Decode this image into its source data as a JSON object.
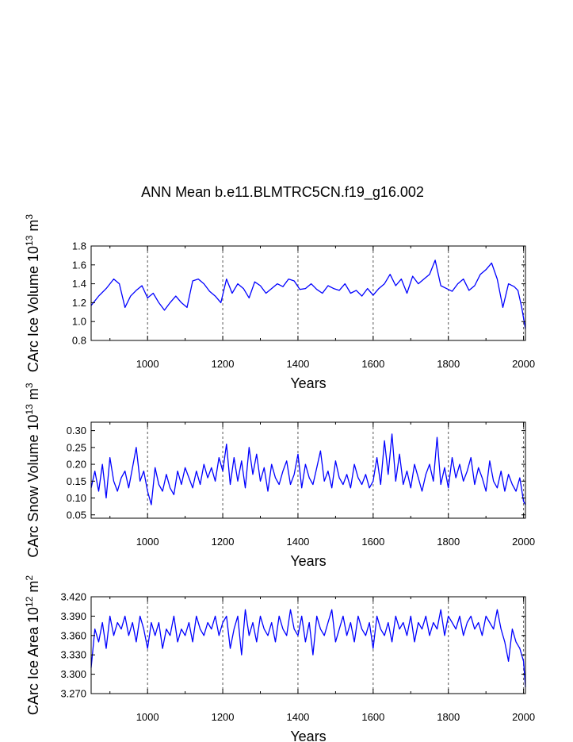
{
  "page": {
    "title": "ANN Mean b.e11.BLMTRC5CN.f19_g16.002"
  },
  "chart_data": [
    {
      "type": "line",
      "name": "ice-volume",
      "xlabel": "Years",
      "ylabel_main": "CArc Ice Volume 10",
      "ylabel_sup1": "13",
      "ylabel_mid": " m",
      "ylabel_sup2": "3",
      "xlim": [
        850,
        2005
      ],
      "ylim": [
        0.8,
        1.8
      ],
      "xticks": [
        1000,
        1200,
        1400,
        1600,
        1800,
        2000
      ],
      "yticks": [
        0.8,
        1.0,
        1.2,
        1.4,
        1.6,
        1.8
      ],
      "ytick_labels": [
        "0.8",
        "1.0",
        "1.2",
        "1.4",
        "1.6",
        "1.8"
      ],
      "grid": "vertical-dashed",
      "color": "#0000ff",
      "x": [
        850,
        870,
        890,
        910,
        925,
        940,
        955,
        970,
        985,
        1000,
        1015,
        1030,
        1045,
        1060,
        1075,
        1090,
        1105,
        1120,
        1135,
        1150,
        1165,
        1180,
        1195,
        1210,
        1225,
        1240,
        1255,
        1270,
        1285,
        1300,
        1315,
        1330,
        1345,
        1360,
        1375,
        1390,
        1405,
        1420,
        1435,
        1450,
        1465,
        1480,
        1495,
        1510,
        1525,
        1540,
        1555,
        1570,
        1585,
        1600,
        1615,
        1630,
        1645,
        1660,
        1675,
        1690,
        1705,
        1720,
        1735,
        1750,
        1765,
        1780,
        1795,
        1810,
        1825,
        1840,
        1855,
        1870,
        1885,
        1900,
        1915,
        1930,
        1945,
        1960,
        1975,
        1985,
        1995,
        2005
      ],
      "values": [
        1.17,
        1.27,
        1.35,
        1.45,
        1.4,
        1.15,
        1.27,
        1.33,
        1.38,
        1.25,
        1.3,
        1.2,
        1.12,
        1.2,
        1.27,
        1.2,
        1.15,
        1.43,
        1.45,
        1.4,
        1.32,
        1.27,
        1.2,
        1.45,
        1.3,
        1.4,
        1.35,
        1.25,
        1.42,
        1.38,
        1.3,
        1.35,
        1.4,
        1.37,
        1.45,
        1.43,
        1.34,
        1.35,
        1.4,
        1.34,
        1.3,
        1.38,
        1.35,
        1.33,
        1.4,
        1.3,
        1.33,
        1.27,
        1.35,
        1.28,
        1.35,
        1.4,
        1.5,
        1.38,
        1.45,
        1.3,
        1.48,
        1.4,
        1.45,
        1.5,
        1.65,
        1.38,
        1.35,
        1.32,
        1.4,
        1.45,
        1.33,
        1.38,
        1.5,
        1.55,
        1.62,
        1.45,
        1.15,
        1.4,
        1.37,
        1.33,
        1.15,
        0.92
      ]
    },
    {
      "type": "line",
      "name": "snow-volume",
      "xlabel": "Years",
      "ylabel_main": "CArc Snow Volume 10",
      "ylabel_sup1": "13",
      "ylabel_mid": " m",
      "ylabel_sup2": "3",
      "xlim": [
        850,
        2005
      ],
      "ylim": [
        0.04,
        0.325
      ],
      "xticks": [
        1000,
        1200,
        1400,
        1600,
        1800,
        2000
      ],
      "yticks": [
        0.05,
        0.1,
        0.15,
        0.2,
        0.25,
        0.3
      ],
      "ytick_labels": [
        "0.05",
        "0.10",
        "0.15",
        "0.20",
        "0.25",
        "0.30"
      ],
      "grid": "vertical-dashed",
      "color": "#0000ff",
      "x": [
        850,
        860,
        870,
        880,
        890,
        900,
        910,
        920,
        930,
        940,
        950,
        960,
        970,
        980,
        990,
        1000,
        1010,
        1020,
        1030,
        1040,
        1050,
        1060,
        1070,
        1080,
        1090,
        1100,
        1110,
        1120,
        1130,
        1140,
        1150,
        1160,
        1170,
        1180,
        1190,
        1200,
        1210,
        1220,
        1230,
        1240,
        1250,
        1260,
        1270,
        1280,
        1290,
        1300,
        1310,
        1320,
        1330,
        1340,
        1350,
        1360,
        1370,
        1380,
        1390,
        1400,
        1410,
        1420,
        1430,
        1440,
        1450,
        1460,
        1470,
        1480,
        1490,
        1500,
        1510,
        1520,
        1530,
        1540,
        1550,
        1560,
        1570,
        1580,
        1590,
        1600,
        1610,
        1620,
        1630,
        1640,
        1650,
        1660,
        1670,
        1680,
        1690,
        1700,
        1710,
        1720,
        1730,
        1740,
        1750,
        1760,
        1770,
        1780,
        1790,
        1800,
        1810,
        1820,
        1830,
        1840,
        1850,
        1860,
        1870,
        1880,
        1890,
        1900,
        1910,
        1920,
        1930,
        1940,
        1950,
        1960,
        1970,
        1980,
        1990,
        2000,
        2005
      ],
      "values": [
        0.13,
        0.18,
        0.12,
        0.2,
        0.1,
        0.22,
        0.15,
        0.12,
        0.16,
        0.18,
        0.13,
        0.19,
        0.25,
        0.15,
        0.18,
        0.12,
        0.08,
        0.19,
        0.14,
        0.12,
        0.17,
        0.13,
        0.11,
        0.18,
        0.14,
        0.19,
        0.16,
        0.13,
        0.18,
        0.14,
        0.2,
        0.16,
        0.19,
        0.15,
        0.22,
        0.18,
        0.26,
        0.14,
        0.22,
        0.15,
        0.21,
        0.13,
        0.25,
        0.17,
        0.23,
        0.15,
        0.19,
        0.12,
        0.2,
        0.16,
        0.14,
        0.18,
        0.21,
        0.14,
        0.17,
        0.23,
        0.13,
        0.2,
        0.16,
        0.14,
        0.19,
        0.24,
        0.15,
        0.18,
        0.13,
        0.21,
        0.16,
        0.14,
        0.17,
        0.13,
        0.2,
        0.16,
        0.14,
        0.17,
        0.13,
        0.15,
        0.22,
        0.14,
        0.27,
        0.17,
        0.29,
        0.15,
        0.23,
        0.14,
        0.18,
        0.13,
        0.2,
        0.16,
        0.12,
        0.17,
        0.2,
        0.15,
        0.28,
        0.14,
        0.19,
        0.13,
        0.22,
        0.16,
        0.2,
        0.15,
        0.18,
        0.22,
        0.14,
        0.19,
        0.16,
        0.12,
        0.21,
        0.15,
        0.13,
        0.18,
        0.12,
        0.17,
        0.14,
        0.12,
        0.16,
        0.09,
        0.08
      ]
    },
    {
      "type": "line",
      "name": "ice-area",
      "xlabel": "Years",
      "ylabel_main": "CArc Ice Area 10",
      "ylabel_sup1": "12",
      "ylabel_mid": " m",
      "ylabel_sup2": "2",
      "xlim": [
        850,
        2005
      ],
      "ylim": [
        3.27,
        3.42
      ],
      "xticks": [
        1000,
        1200,
        1400,
        1600,
        1800,
        2000
      ],
      "yticks": [
        3.27,
        3.3,
        3.33,
        3.36,
        3.39,
        3.42
      ],
      "ytick_labels": [
        "3.270",
        "3.300",
        "3.330",
        "3.360",
        "3.390",
        "3.420"
      ],
      "grid": "vertical-dashed",
      "color": "#0000ff",
      "x": [
        850,
        860,
        870,
        880,
        890,
        900,
        910,
        920,
        930,
        940,
        950,
        960,
        970,
        980,
        990,
        1000,
        1010,
        1020,
        1030,
        1040,
        1050,
        1060,
        1070,
        1080,
        1090,
        1100,
        1110,
        1120,
        1130,
        1140,
        1150,
        1160,
        1170,
        1180,
        1190,
        1200,
        1210,
        1220,
        1230,
        1240,
        1250,
        1260,
        1270,
        1280,
        1290,
        1300,
        1310,
        1320,
        1330,
        1340,
        1350,
        1360,
        1370,
        1380,
        1390,
        1400,
        1410,
        1420,
        1430,
        1440,
        1450,
        1460,
        1470,
        1480,
        1490,
        1500,
        1510,
        1520,
        1530,
        1540,
        1550,
        1560,
        1570,
        1580,
        1590,
        1600,
        1610,
        1620,
        1630,
        1640,
        1650,
        1660,
        1670,
        1680,
        1690,
        1700,
        1710,
        1720,
        1730,
        1740,
        1750,
        1760,
        1770,
        1780,
        1790,
        1800,
        1810,
        1820,
        1830,
        1840,
        1850,
        1860,
        1870,
        1880,
        1890,
        1900,
        1910,
        1920,
        1930,
        1940,
        1950,
        1960,
        1970,
        1980,
        1990,
        2000,
        2005
      ],
      "values": [
        3.31,
        3.37,
        3.35,
        3.38,
        3.34,
        3.39,
        3.36,
        3.38,
        3.37,
        3.39,
        3.36,
        3.38,
        3.35,
        3.39,
        3.37,
        3.34,
        3.38,
        3.36,
        3.38,
        3.34,
        3.37,
        3.36,
        3.39,
        3.35,
        3.37,
        3.36,
        3.38,
        3.35,
        3.39,
        3.37,
        3.36,
        3.38,
        3.37,
        3.39,
        3.36,
        3.38,
        3.39,
        3.34,
        3.37,
        3.39,
        3.33,
        3.4,
        3.36,
        3.38,
        3.35,
        3.39,
        3.37,
        3.36,
        3.38,
        3.35,
        3.39,
        3.37,
        3.36,
        3.4,
        3.37,
        3.36,
        3.39,
        3.35,
        3.38,
        3.33,
        3.39,
        3.37,
        3.36,
        3.38,
        3.4,
        3.35,
        3.37,
        3.39,
        3.36,
        3.38,
        3.35,
        3.39,
        3.37,
        3.36,
        3.38,
        3.34,
        3.39,
        3.37,
        3.36,
        3.38,
        3.35,
        3.39,
        3.37,
        3.38,
        3.36,
        3.39,
        3.35,
        3.38,
        3.37,
        3.39,
        3.36,
        3.38,
        3.37,
        3.4,
        3.36,
        3.39,
        3.38,
        3.37,
        3.39,
        3.36,
        3.38,
        3.39,
        3.37,
        3.38,
        3.36,
        3.39,
        3.38,
        3.37,
        3.4,
        3.37,
        3.35,
        3.32,
        3.37,
        3.35,
        3.34,
        3.32,
        3.28
      ]
    }
  ]
}
